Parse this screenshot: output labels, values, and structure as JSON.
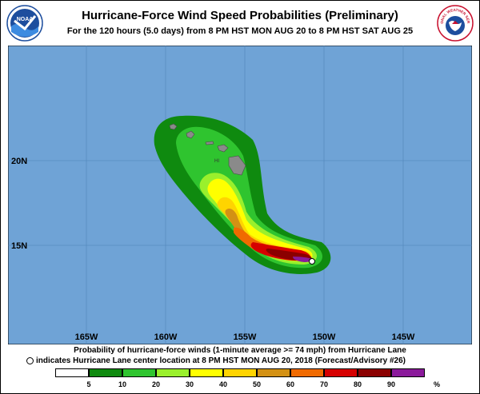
{
  "title": "Hurricane-Force Wind Speed Probabilities (Preliminary)",
  "subtitle": "For the 120 hours (5.0 days) from 8 PM HST MON AUG 20 to 8 PM HST SAT AUG 25",
  "logos": {
    "left": "NOAA",
    "right": "NATIONAL WEATHER SERVICE"
  },
  "map": {
    "longitude_labels": [
      "165W",
      "160W",
      "155W",
      "150W",
      "145W"
    ],
    "latitude_labels": [
      "20N",
      "15N"
    ],
    "island_label": "HI",
    "colors": {
      "ocean": "#6fa3d6",
      "land": "#8a8a8a"
    }
  },
  "caption": {
    "line1": "Probability of hurricane-force winds (1-minute average >= 74 mph) from Hurricane Lane",
    "line2": "indicates Hurricane Lane center location at 8 PM HST MON AUG 20, 2018 (Forecast/Advisory #26)"
  },
  "legend": {
    "ticks": [
      "5",
      "10",
      "20",
      "30",
      "40",
      "50",
      "60",
      "70",
      "80",
      "90"
    ],
    "unit": "%",
    "colors": [
      "#ffffff",
      "#0f8a0f",
      "#2fc42f",
      "#9af02c",
      "#ffff00",
      "#ffd400",
      "#d39114",
      "#f06a00",
      "#d60000",
      "#8b0000",
      "#8b1a9b"
    ]
  }
}
